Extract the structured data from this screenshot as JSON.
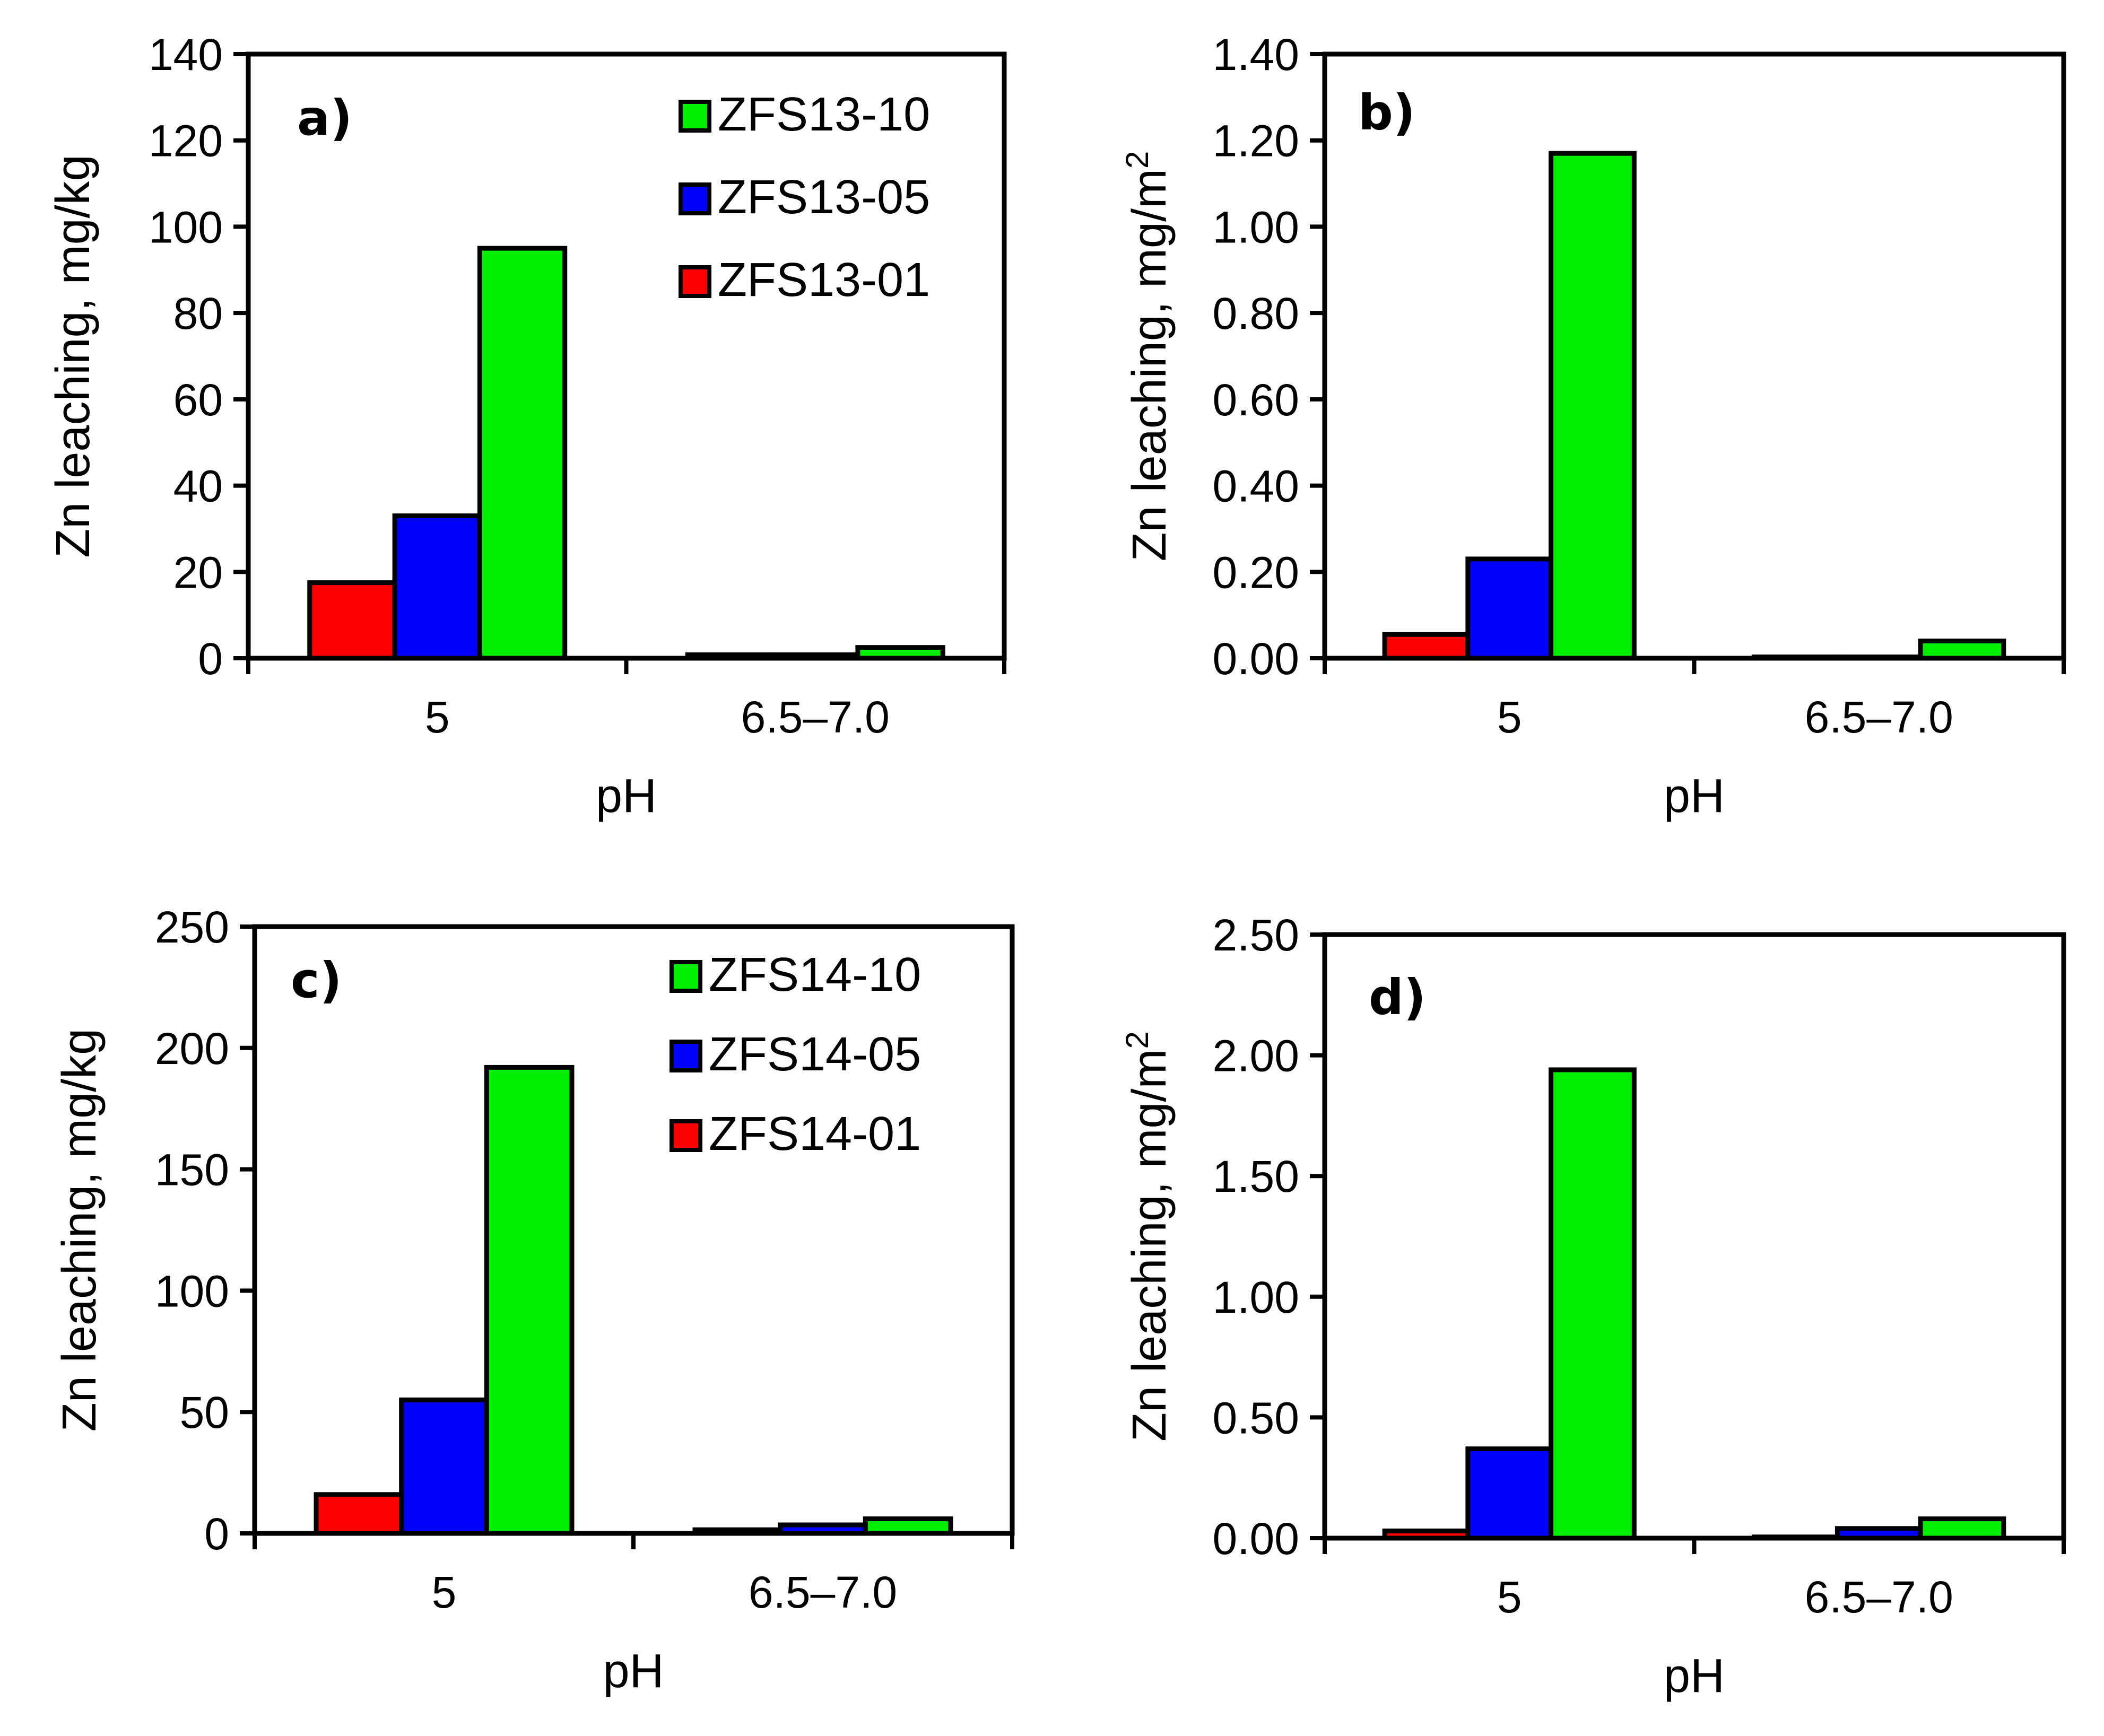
{
  "chart_data": [
    {
      "type": "bar",
      "panel_label": "a)",
      "categories": [
        "5",
        "6.5–7.0"
      ],
      "xlabel": "pH",
      "ylabel": "Zn leaching, mg/kg",
      "ylim": [
        0,
        140
      ],
      "yticks": [
        "0",
        "20",
        "40",
        "60",
        "80",
        "100",
        "120",
        "140"
      ],
      "series": [
        {
          "name": "ZFS13-01",
          "color": "#ff0000",
          "values": [
            17.5,
            0.8
          ]
        },
        {
          "name": "ZFS13-05",
          "color": "#0000ff",
          "values": [
            33,
            0.8
          ]
        },
        {
          "name": "ZFS13-10",
          "color": "#00ee00",
          "values": [
            95,
            2.5
          ]
        }
      ],
      "legend": {
        "position": "top-right",
        "order": [
          "ZFS13-10",
          "ZFS13-05",
          "ZFS13-01"
        ]
      }
    },
    {
      "type": "bar",
      "panel_label": "b)",
      "categories": [
        "5",
        "6.5–7.0"
      ],
      "xlabel": "pH",
      "ylabel": "Zn leaching, mg/m",
      "ylabel_sup": "2",
      "ylim": [
        0,
        1.4
      ],
      "yticks": [
        "0.00",
        "0.20",
        "0.40",
        "0.60",
        "0.80",
        "1.00",
        "1.20",
        "1.40"
      ],
      "series": [
        {
          "name": "ZFS13-01",
          "color": "#ff0000",
          "values": [
            0.055,
            0.003
          ]
        },
        {
          "name": "ZFS13-05",
          "color": "#0000ff",
          "values": [
            0.23,
            0.003
          ]
        },
        {
          "name": "ZFS13-10",
          "color": "#00ee00",
          "values": [
            1.17,
            0.04
          ]
        }
      ]
    },
    {
      "type": "bar",
      "panel_label": "c)",
      "categories": [
        "5",
        "6.5–7.0"
      ],
      "xlabel": "pH",
      "ylabel": "Zn leaching, mg/kg",
      "ylim": [
        0,
        250
      ],
      "yticks": [
        "0",
        "50",
        "100",
        "150",
        "200",
        "250"
      ],
      "series": [
        {
          "name": "ZFS14-01",
          "color": "#ff0000",
          "values": [
            16,
            1.5
          ]
        },
        {
          "name": "ZFS14-05",
          "color": "#0000ff",
          "values": [
            55,
            3.5
          ]
        },
        {
          "name": "ZFS14-10",
          "color": "#00ee00",
          "values": [
            192,
            6
          ]
        }
      ],
      "legend": {
        "position": "top-right",
        "order": [
          "ZFS14-10",
          "ZFS14-05",
          "ZFS14-01"
        ]
      }
    },
    {
      "type": "bar",
      "panel_label": "d)",
      "categories": [
        "5",
        "6.5–7.0"
      ],
      "xlabel": "pH",
      "ylabel": "Zn leaching, mg/m",
      "ylabel_sup": "2",
      "ylim": [
        0,
        2.5
      ],
      "yticks": [
        "0.00",
        "0.50",
        "1.00",
        "1.50",
        "2.00",
        "2.50"
      ],
      "series": [
        {
          "name": "ZFS14-01",
          "color": "#ff0000",
          "values": [
            0.03,
            0.005
          ]
        },
        {
          "name": "ZFS14-05",
          "color": "#0000ff",
          "values": [
            0.37,
            0.04
          ]
        },
        {
          "name": "ZFS14-10",
          "color": "#00ee00",
          "values": [
            1.94,
            0.08
          ]
        }
      ]
    }
  ]
}
